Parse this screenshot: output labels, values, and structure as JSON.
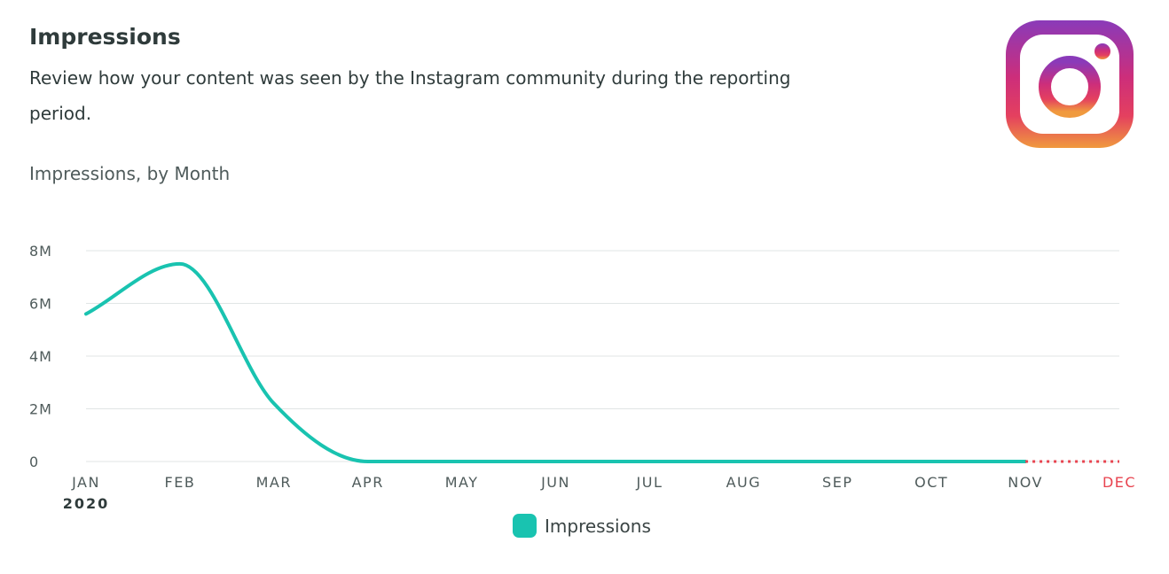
{
  "header": {
    "title": "Impressions",
    "description": "Review how your content was seen by the Instagram community during the reporting period."
  },
  "logo": {
    "icon": "instagram-logo-icon"
  },
  "colors": {
    "series": "#19c3b0",
    "projection": "#e8434f",
    "grid": "#e1e5e5",
    "text": "#2f3b3b"
  },
  "chart_data": {
    "type": "line",
    "title": "Impressions, by Month",
    "x_labels": [
      "JAN",
      "FEB",
      "MAR",
      "APR",
      "MAY",
      "JUN",
      "JUL",
      "AUG",
      "SEP",
      "OCT",
      "NOV",
      "DEC"
    ],
    "x_year_label": "2020",
    "y_ticks": [
      0,
      2000000,
      4000000,
      6000000,
      8000000
    ],
    "y_tick_labels": [
      "0",
      "2M",
      "4M",
      "6M",
      "8M"
    ],
    "ylim": [
      0,
      8000000
    ],
    "grid": true,
    "legend": "bottom-center",
    "series": [
      {
        "name": "Impressions",
        "values": [
          5600000,
          7500000,
          2200000,
          0,
          0,
          0,
          0,
          0,
          0,
          0,
          0,
          null
        ]
      }
    ],
    "projection": {
      "from": "NOV",
      "to": "DEC",
      "value": 0,
      "style": "dotted"
    }
  }
}
